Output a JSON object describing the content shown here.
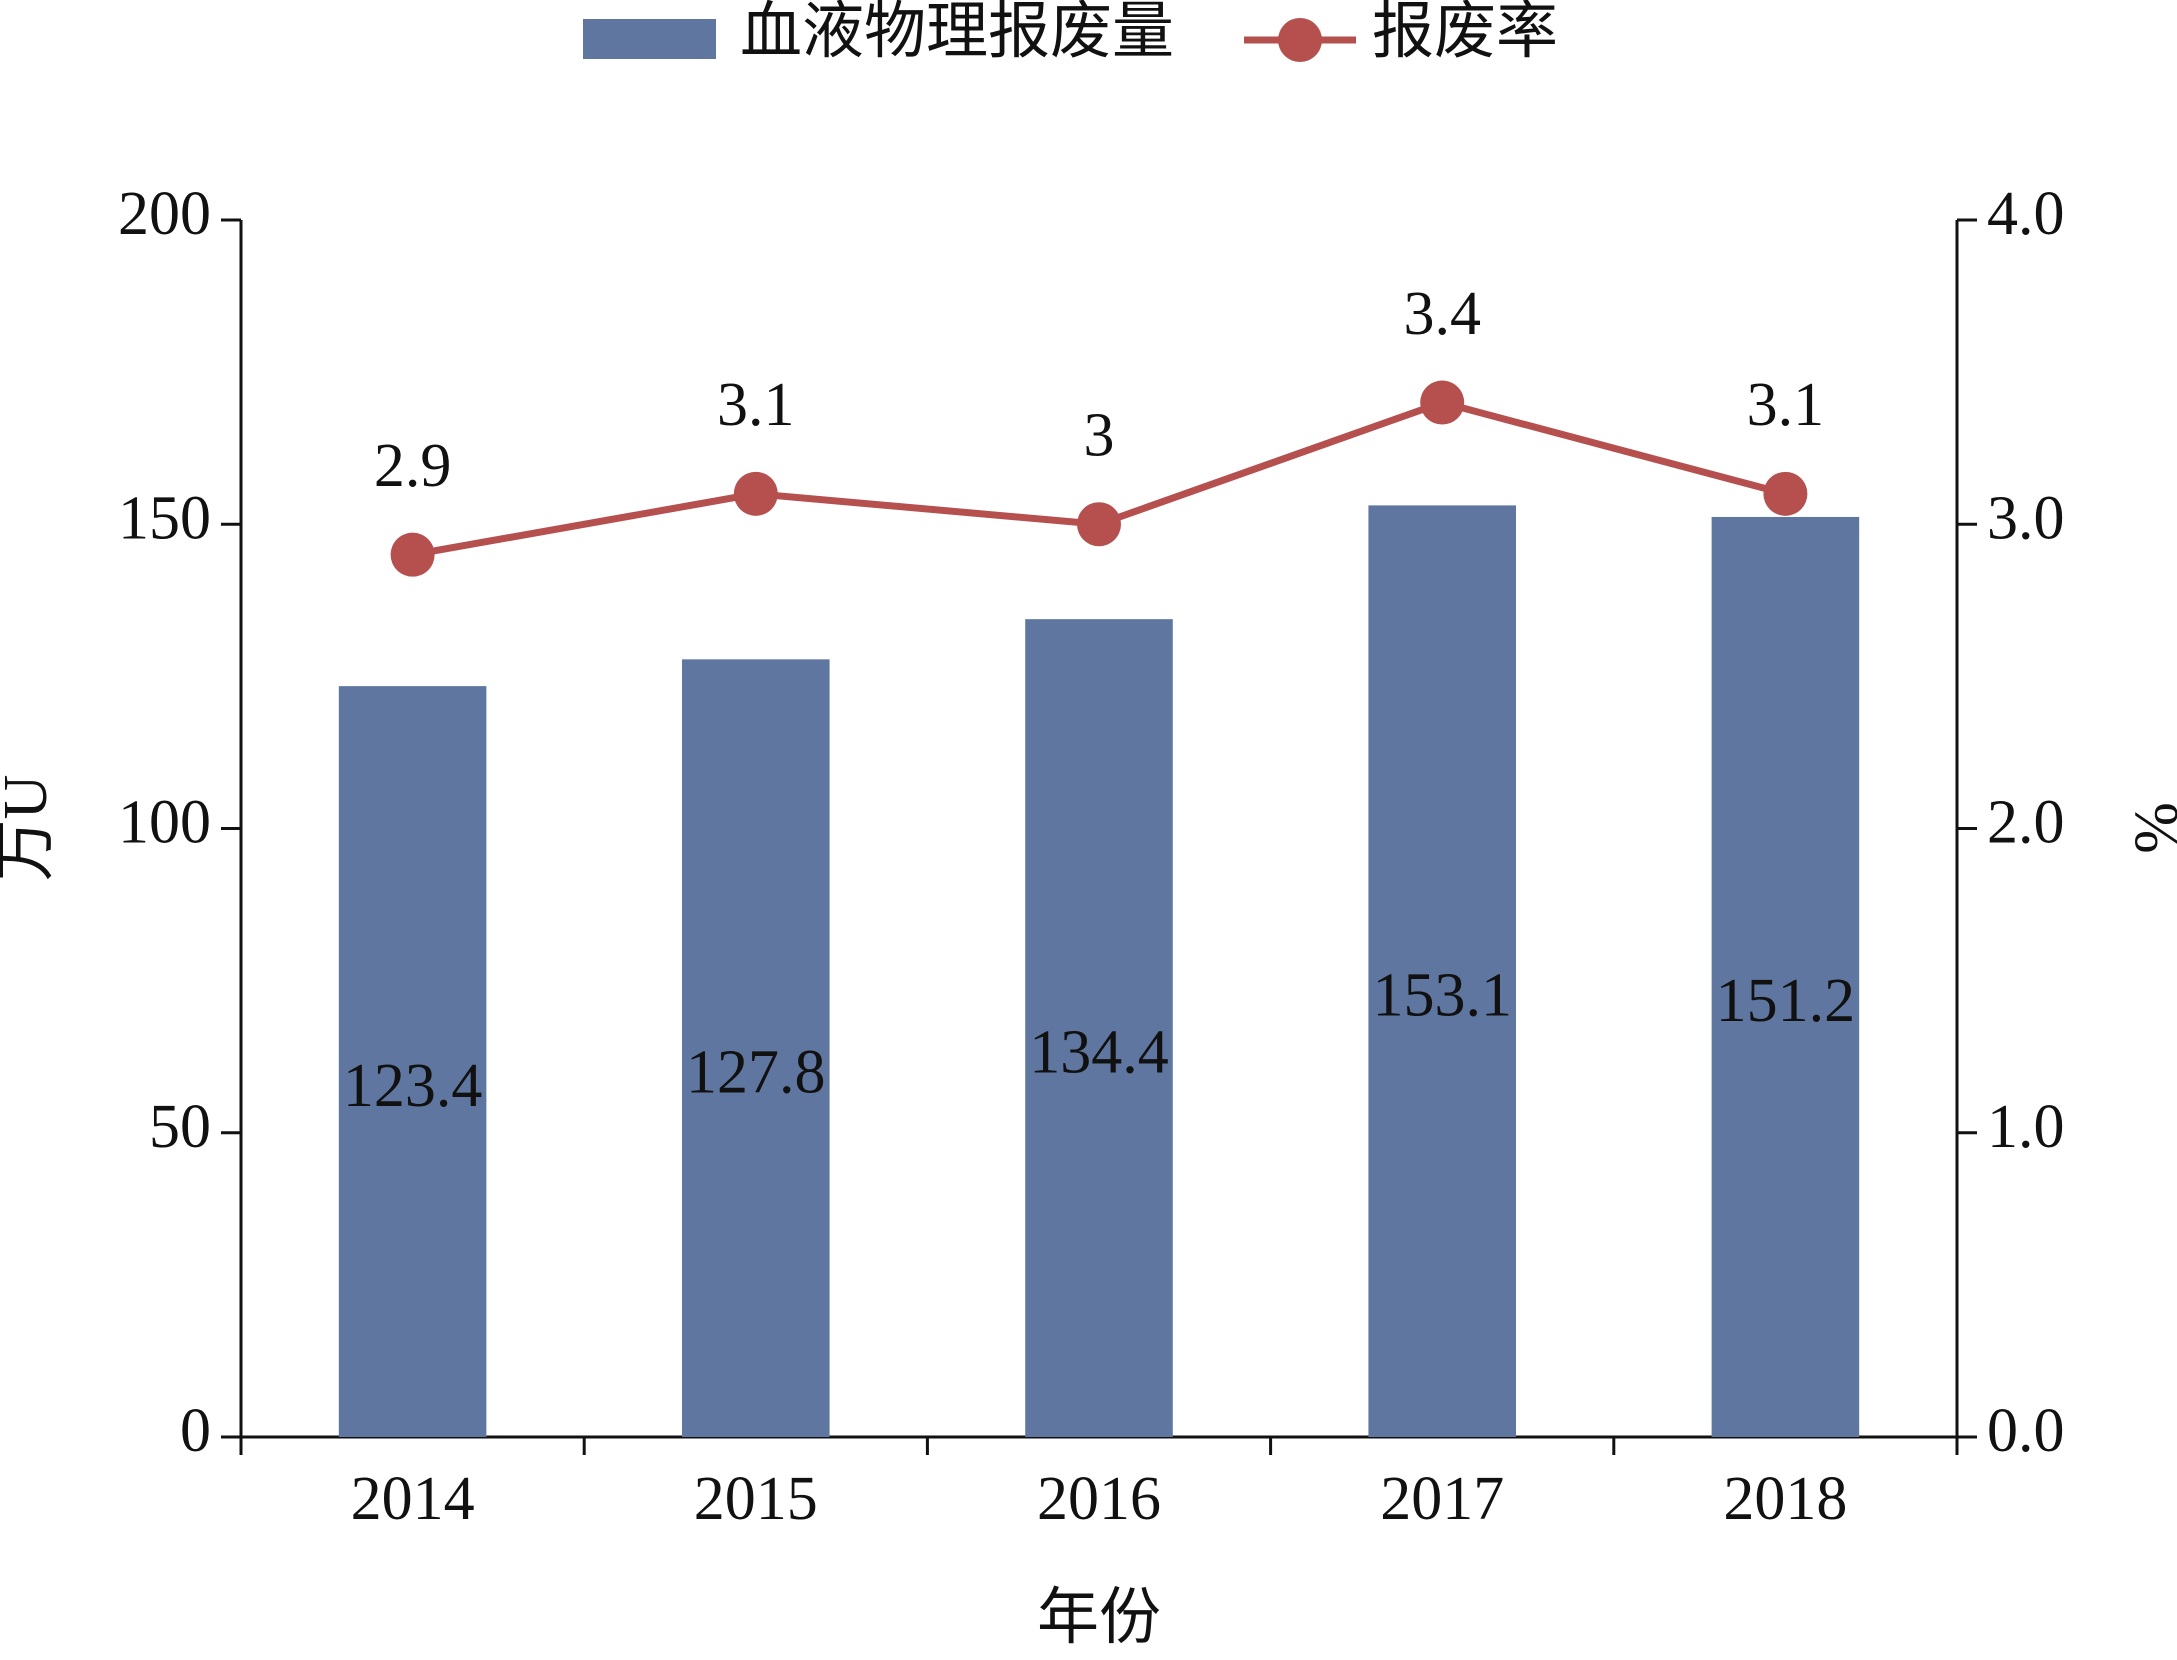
{
  "chart_data": {
    "type": "bar",
    "x_label": "年份",
    "y_label": "万U",
    "y2_label": "%",
    "categories": [
      "2014",
      "2015",
      "2016",
      "2017",
      "2018"
    ],
    "series": [
      {
        "name": "血液物理报废量",
        "color": "#5f77a0",
        "values": [
          123.4,
          127.8,
          134.4,
          153.1,
          151.2
        ]
      },
      {
        "name": "报废率",
        "color": "#b5504f",
        "axis": "y2",
        "values": [
          2.9,
          3.1,
          3.0,
          3.4,
          3.1
        ]
      }
    ],
    "ylim": [
      0,
      200
    ],
    "yticks": [
      0,
      50,
      100,
      150,
      200
    ],
    "y2lim": [
      0,
      4
    ],
    "y2ticks": [
      {
        "value": 0,
        "label": "0.0"
      },
      {
        "value": 1,
        "label": "1.0"
      },
      {
        "value": 2,
        "label": "2.0"
      },
      {
        "value": 3,
        "label": "3.0"
      },
      {
        "value": 4,
        "label": "4.0"
      }
    ],
    "grid": false
  }
}
